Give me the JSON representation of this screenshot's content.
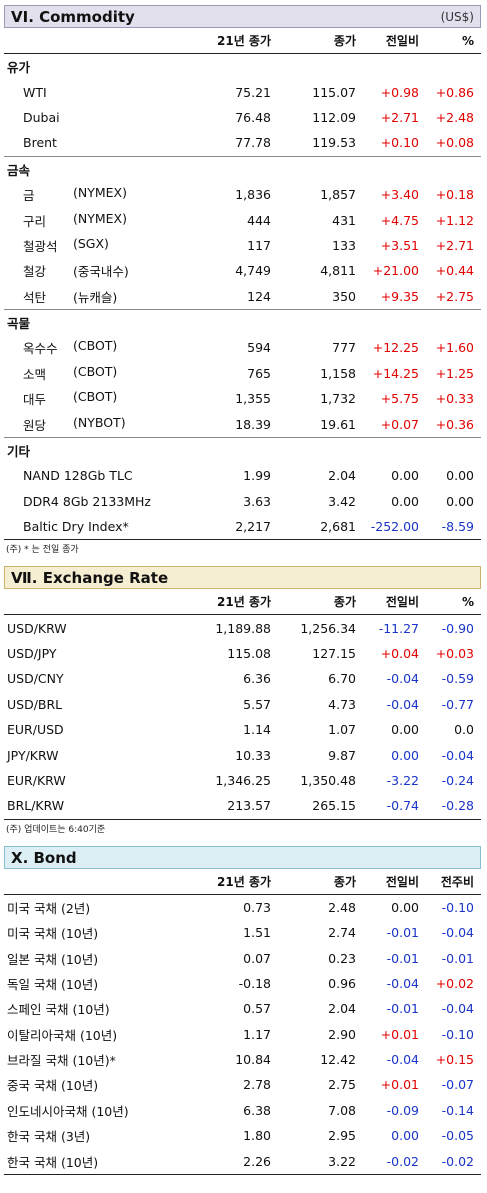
{
  "commodity": {
    "title": "VI. Commodity",
    "unit": "(US$)",
    "columns": [
      "21년 종가",
      "종가",
      "전일비",
      "%"
    ],
    "groups": [
      {
        "name": "유가",
        "rows": [
          {
            "label": "WTI",
            "exchange": "",
            "v1": "75.21",
            "v2": "115.07",
            "v3": "+0.98",
            "v4": "+0.86",
            "s3": "pos",
            "s4": "pos"
          },
          {
            "label": "Dubai",
            "exchange": "",
            "v1": "76.48",
            "v2": "112.09",
            "v3": "+2.71",
            "v4": "+2.48",
            "s3": "pos",
            "s4": "pos"
          },
          {
            "label": "Brent",
            "exchange": "",
            "v1": "77.78",
            "v2": "119.53",
            "v3": "+0.10",
            "v4": "+0.08",
            "s3": "pos",
            "s4": "pos"
          }
        ]
      },
      {
        "name": "금속",
        "rows": [
          {
            "label": "금",
            "exchange": "(NYMEX)",
            "v1": "1,836",
            "v2": "1,857",
            "v3": "+3.40",
            "v4": "+0.18",
            "s3": "pos",
            "s4": "pos"
          },
          {
            "label": "구리",
            "exchange": "(NYMEX)",
            "v1": "444",
            "v2": "431",
            "v3": "+4.75",
            "v4": "+1.12",
            "s3": "pos",
            "s4": "pos"
          },
          {
            "label": "철광석",
            "exchange": "(SGX)",
            "v1": "117",
            "v2": "133",
            "v3": "+3.51",
            "v4": "+2.71",
            "s3": "pos",
            "s4": "pos"
          },
          {
            "label": "철강",
            "exchange": "(중국내수)",
            "v1": "4,749",
            "v2": "4,811",
            "v3": "+21.00",
            "v4": "+0.44",
            "s3": "pos",
            "s4": "pos"
          },
          {
            "label": "석탄",
            "exchange": "(뉴캐슬)",
            "v1": "124",
            "v2": "350",
            "v3": "+9.35",
            "v4": "+2.75",
            "s3": "pos",
            "s4": "pos"
          }
        ]
      },
      {
        "name": "곡물",
        "rows": [
          {
            "label": "옥수수",
            "exchange": "(CBOT)",
            "v1": "594",
            "v2": "777",
            "v3": "+12.25",
            "v4": "+1.60",
            "s3": "pos",
            "s4": "pos"
          },
          {
            "label": "소맥",
            "exchange": "(CBOT)",
            "v1": "765",
            "v2": "1,158",
            "v3": "+14.25",
            "v4": "+1.25",
            "s3": "pos",
            "s4": "pos"
          },
          {
            "label": "대두",
            "exchange": "(CBOT)",
            "v1": "1,355",
            "v2": "1,732",
            "v3": "+5.75",
            "v4": "+0.33",
            "s3": "pos",
            "s4": "pos"
          },
          {
            "label": "원당",
            "exchange": "(NYBOT)",
            "v1": "18.39",
            "v2": "19.61",
            "v3": "+0.07",
            "v4": "+0.36",
            "s3": "pos",
            "s4": "pos"
          }
        ]
      },
      {
        "name": "기타",
        "rows": [
          {
            "label": "NAND 128Gb TLC",
            "exchange": "",
            "v1": "1.99",
            "v2": "2.04",
            "v3": "0.00",
            "v4": "0.00",
            "s3": "zero",
            "s4": "zero"
          },
          {
            "label": "DDR4 8Gb 2133MHz",
            "exchange": "",
            "v1": "3.63",
            "v2": "3.42",
            "v3": "0.00",
            "v4": "0.00",
            "s3": "zero",
            "s4": "zero"
          },
          {
            "label": "Baltic Dry Index*",
            "exchange": "",
            "v1": "2,217",
            "v2": "2,681",
            "v3": "-252.00",
            "v4": "-8.59",
            "s3": "neg",
            "s4": "neg"
          }
        ]
      }
    ],
    "note": "(주) * 는 전일 종가"
  },
  "exchange": {
    "title": "Ⅶ. Exchange Rate",
    "columns": [
      "21년 종가",
      "종가",
      "전일비",
      "%"
    ],
    "rows": [
      {
        "label": "USD/KRW",
        "v1": "1,189.88",
        "v2": "1,256.34",
        "v3": "-11.27",
        "v4": "-0.90",
        "s3": "neg",
        "s4": "neg"
      },
      {
        "label": "USD/JPY",
        "v1": "115.08",
        "v2": "127.15",
        "v3": "+0.04",
        "v4": "+0.03",
        "s3": "pos",
        "s4": "pos"
      },
      {
        "label": "USD/CNY",
        "v1": "6.36",
        "v2": "6.70",
        "v3": "-0.04",
        "v4": "-0.59",
        "s3": "neg",
        "s4": "neg"
      },
      {
        "label": "USD/BRL",
        "v1": "5.57",
        "v2": "4.73",
        "v3": "-0.04",
        "v4": "-0.77",
        "s3": "neg",
        "s4": "neg"
      },
      {
        "label": "EUR/USD",
        "v1": "1.14",
        "v2": "1.07",
        "v3": "0.00",
        "v4": "0.0",
        "s3": "zero",
        "s4": "zero"
      },
      {
        "label": "JPY/KRW",
        "v1": "10.33",
        "v2": "9.87",
        "v3": "0.00",
        "v4": "-0.04",
        "s3": "neg",
        "s4": "neg"
      },
      {
        "label": "EUR/KRW",
        "v1": "1,346.25",
        "v2": "1,350.48",
        "v3": "-3.22",
        "v4": "-0.24",
        "s3": "neg",
        "s4": "neg"
      },
      {
        "label": "BRL/KRW",
        "v1": "213.57",
        "v2": "265.15",
        "v3": "-0.74",
        "v4": "-0.28",
        "s3": "neg",
        "s4": "neg"
      }
    ],
    "note": "(주) 업데이트는 6:40기준"
  },
  "bond": {
    "title": "X. Bond",
    "columns": [
      "21년 종가",
      "종가",
      "전일비",
      "전주비"
    ],
    "rows": [
      {
        "label": "미국 국채 (2년)",
        "v1": "0.73",
        "v2": "2.48",
        "v3": "0.00",
        "v4": "-0.10",
        "s3": "zero",
        "s4": "neg"
      },
      {
        "label": "미국 국채 (10년)",
        "v1": "1.51",
        "v2": "2.74",
        "v3": "-0.01",
        "v4": "-0.04",
        "s3": "neg",
        "s4": "neg"
      },
      {
        "label": "일본 국채 (10년)",
        "v1": "0.07",
        "v2": "0.23",
        "v3": "-0.01",
        "v4": "-0.01",
        "s3": "neg",
        "s4": "neg"
      },
      {
        "label": "독일 국채 (10년)",
        "v1": "-0.18",
        "v2": "0.96",
        "v3": "-0.04",
        "v4": "+0.02",
        "s3": "neg",
        "s4": "pos"
      },
      {
        "label": "스페인 국채 (10년)",
        "v1": "0.57",
        "v2": "2.04",
        "v3": "-0.01",
        "v4": "-0.04",
        "s3": "neg",
        "s4": "neg"
      },
      {
        "label": "이탈리아국채 (10년)",
        "v1": "1.17",
        "v2": "2.90",
        "v3": "+0.01",
        "v4": "-0.10",
        "s3": "pos",
        "s4": "neg"
      },
      {
        "label": "브라질 국채 (10년)*",
        "v1": "10.84",
        "v2": "12.42",
        "v3": "-0.04",
        "v4": "+0.15",
        "s3": "neg",
        "s4": "pos"
      },
      {
        "label": "중국 국채 (10년)",
        "v1": "2.78",
        "v2": "2.75",
        "v3": "+0.01",
        "v4": "-0.07",
        "s3": "pos",
        "s4": "neg"
      },
      {
        "label": "인도네시아국채 (10년)",
        "v1": "6.38",
        "v2": "7.08",
        "v3": "-0.09",
        "v4": "-0.14",
        "s3": "neg",
        "s4": "neg"
      },
      {
        "label": "한국 국채 (3년)",
        "v1": "1.80",
        "v2": "2.95",
        "v3": "0.00",
        "v4": "-0.05",
        "s3": "neg",
        "s4": "neg"
      },
      {
        "label": "한국 국채 (10년)",
        "v1": "2.26",
        "v2": "3.22",
        "v3": "-0.02",
        "v4": "-0.02",
        "s3": "neg",
        "s4": "neg"
      }
    ]
  },
  "colors": {
    "positive": "#e30000",
    "negative": "#1a35c8",
    "neutral": "#111111"
  }
}
